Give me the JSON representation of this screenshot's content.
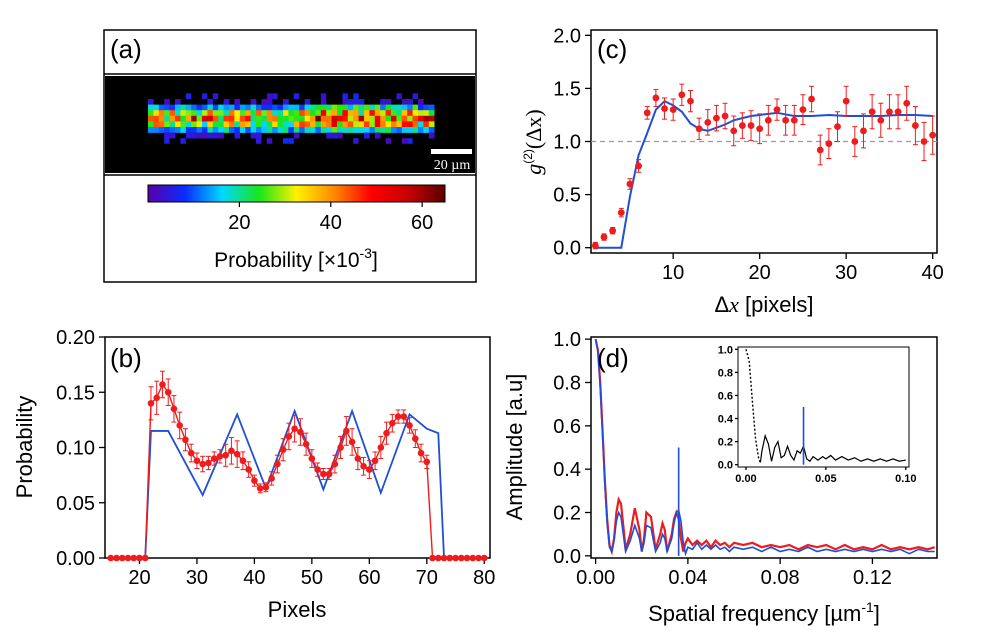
{
  "panels": {
    "a": {
      "label": "(a)",
      "scale_bar_label": "20 µm",
      "colorbar": {
        "ticks": [
          "20",
          "40",
          "60"
        ],
        "tick_values": [
          20,
          40,
          60
        ],
        "range": [
          0,
          65
        ],
        "label_main": "Probability [×10",
        "label_sup": "-3",
        "label_end": "]",
        "colormap": [
          "#5a00a8",
          "#0a2cff",
          "#00d8ff",
          "#19e61a",
          "#fff200",
          "#ff8a00",
          "#ff0000",
          "#c80000",
          "#5a0000"
        ]
      }
    },
    "b": {
      "label": "(b)",
      "xlabel": "Pixels",
      "ylabel": "Probability",
      "xticks": [
        "20",
        "30",
        "40",
        "50",
        "60",
        "70",
        "80"
      ],
      "yticks": [
        "0.00",
        "0.05",
        "0.10",
        "0.15",
        "0.20"
      ]
    },
    "c": {
      "label": "(c)",
      "ylabel_g": "g",
      "ylabel_sup": "(2)",
      "ylabel_rest": "(Δx)",
      "xlabel_delta": "Δ",
      "xlabel_var": "x",
      "xlabel_rest": " [pixels]",
      "xticks": [
        "10",
        "20",
        "30",
        "40"
      ],
      "yticks": [
        "0.0",
        "0.5",
        "1.0",
        "1.5",
        "2.0"
      ]
    },
    "d": {
      "label": "(d)",
      "ylabel": "Amplitude [a.u]",
      "xlabel_main": "Spatial frequency [µm",
      "xlabel_sup": "-1",
      "xlabel_end": "]",
      "xticks": [
        "0.00",
        "0.04",
        "0.08",
        "0.12"
      ],
      "yticks": [
        "0.0",
        "0.2",
        "0.4",
        "0.6",
        "0.8",
        "1.0"
      ],
      "inset": {
        "xticks": [
          "0.00",
          "0.05",
          "0.10"
        ],
        "yticks": [
          "0.0",
          "0.2",
          "0.4",
          "0.6",
          "0.8",
          "1.0"
        ]
      }
    }
  },
  "chart_data": [
    {
      "panel": "a",
      "type": "heatmap",
      "description_value_range": [
        0,
        65
      ],
      "rows": 7,
      "cols": 53,
      "colorbar_ticks": [
        20,
        40,
        60
      ]
    },
    {
      "panel": "b",
      "type": "line",
      "xlabel": "Pixels",
      "ylabel": "Probability",
      "xlim": [
        14,
        81
      ],
      "ylim": [
        0,
        0.2
      ],
      "colors": {
        "data": "#ee1c1c",
        "model": "#1f4fd6"
      },
      "series": [
        {
          "x": [
            15,
            16,
            17,
            18,
            19,
            20,
            21,
            22,
            23,
            24,
            25,
            26,
            27,
            28,
            29,
            30,
            31,
            32,
            33,
            34,
            35,
            36,
            37,
            38,
            39,
            40,
            41,
            42,
            43,
            44,
            45,
            46,
            47,
            48,
            49,
            50,
            51,
            52,
            53,
            54,
            55,
            56,
            57,
            58,
            59,
            60,
            61,
            62,
            63,
            64,
            65,
            66,
            67,
            68,
            69,
            70,
            71,
            72,
            73,
            74,
            75,
            76,
            77,
            78,
            79,
            80
          ],
          "y": [
            0,
            0,
            0,
            0,
            0,
            0,
            0,
            0.14,
            0.145,
            0.157,
            0.15,
            0.135,
            0.12,
            0.107,
            0.095,
            0.088,
            0.085,
            0.086,
            0.09,
            0.092,
            0.093,
            0.097,
            0.094,
            0.088,
            0.08,
            0.07,
            0.063,
            0.064,
            0.072,
            0.085,
            0.098,
            0.11,
            0.117,
            0.114,
            0.103,
            0.09,
            0.08,
            0.076,
            0.076,
            0.085,
            0.1,
            0.115,
            0.105,
            0.09,
            0.083,
            0.08,
            0.088,
            0.1,
            0.113,
            0.122,
            0.128,
            0.128,
            0.12,
            0.108,
            0.095,
            0.087,
            0,
            0,
            0,
            0,
            0,
            0,
            0,
            0,
            0,
            0
          ],
          "yerr": [
            0,
            0,
            0,
            0,
            0,
            0,
            0,
            0.015,
            0.015,
            0.012,
            0.012,
            0.012,
            0.012,
            0.01,
            0.008,
            0.007,
            0.007,
            0.006,
            0.006,
            0.006,
            0.01,
            0.012,
            0.012,
            0.008,
            0.007,
            0.005,
            0.004,
            0.004,
            0.006,
            0.008,
            0.01,
            0.012,
            0.012,
            0.012,
            0.01,
            0.008,
            0.006,
            0.005,
            0.005,
            0.008,
            0.01,
            0.013,
            0.012,
            0.01,
            0.008,
            0.008,
            0.008,
            0.01,
            0.01,
            0.008,
            0.006,
            0.006,
            0.007,
            0.008,
            0.008,
            0.006,
            0,
            0,
            0,
            0,
            0,
            0,
            0,
            0,
            0,
            0
          ]
        },
        {
          "x": [
            21,
            22,
            25,
            31,
            37,
            42,
            47,
            52,
            57,
            62,
            67,
            70,
            72,
            73
          ],
          "y": [
            0,
            0.115,
            0.115,
            0.057,
            0.13,
            0.063,
            0.133,
            0.062,
            0.133,
            0.059,
            0.13,
            0.117,
            0.113,
            0
          ]
        }
      ]
    },
    {
      "panel": "c",
      "type": "scatter",
      "xlim": [
        0.5,
        40.5
      ],
      "ylim": [
        -0.05,
        2.05
      ],
      "reference_line_y": 1.0,
      "colors": {
        "data": "#ee1c1c",
        "model": "#1f4fd6",
        "reference": "#9a9a9a"
      },
      "series": [
        {
          "x": [
            1,
            2,
            3,
            4,
            5,
            6,
            7,
            8,
            9,
            10,
            11,
            12,
            13,
            14,
            15,
            16,
            17,
            18,
            19,
            20,
            21,
            22,
            23,
            24,
            25,
            26,
            27,
            28,
            29,
            30,
            31,
            32,
            33,
            34,
            35,
            36,
            37,
            38,
            39,
            40
          ],
          "y": [
            0.02,
            0.1,
            0.16,
            0.33,
            0.6,
            0.77,
            1.27,
            1.41,
            1.31,
            1.3,
            1.44,
            1.38,
            1.12,
            1.18,
            1.22,
            1.24,
            1.1,
            1.15,
            1.15,
            1.12,
            1.2,
            1.3,
            1.2,
            1.2,
            1.3,
            1.4,
            0.92,
            0.98,
            1.14,
            1.38,
            1.0,
            1.1,
            1.28,
            1.2,
            1.28,
            1.28,
            1.36,
            1.15,
            1.0,
            1.06
          ],
          "yerr": [
            0.03,
            0.03,
            0.03,
            0.04,
            0.05,
            0.06,
            0.06,
            0.08,
            0.1,
            0.1,
            0.1,
            0.1,
            0.1,
            0.12,
            0.12,
            0.12,
            0.14,
            0.12,
            0.14,
            0.14,
            0.14,
            0.1,
            0.14,
            0.14,
            0.14,
            0.12,
            0.14,
            0.14,
            0.14,
            0.14,
            0.14,
            0.16,
            0.16,
            0.16,
            0.16,
            0.16,
            0.16,
            0.18,
            0.18,
            0.18
          ]
        },
        {
          "x": [
            1,
            2,
            3,
            4,
            5,
            6,
            7,
            8,
            9,
            10,
            11,
            12,
            13,
            14,
            15,
            16,
            17,
            18,
            19,
            20,
            22,
            24,
            26,
            28,
            30,
            32,
            34,
            36,
            38,
            40
          ],
          "y": [
            0,
            0,
            0,
            0,
            0.48,
            0.87,
            1.08,
            1.3,
            1.38,
            1.34,
            1.28,
            1.17,
            1.12,
            1.1,
            1.13,
            1.16,
            1.2,
            1.22,
            1.24,
            1.25,
            1.27,
            1.24,
            1.24,
            1.25,
            1.24,
            1.24,
            1.24,
            1.25,
            1.25,
            1.24
          ]
        }
      ]
    },
    {
      "panel": "d",
      "type": "line",
      "xlim": [
        -0.002,
        0.148
      ],
      "ylim": [
        -0.01,
        1.01
      ],
      "colors": {
        "red": "#ee1c1c",
        "blue": "#1f4fd6",
        "peak": "#1f4fd6"
      },
      "peak_line": {
        "x": 0.036,
        "y": 0.5
      },
      "series": [
        {
          "x": [
            0,
            0.001,
            0.002,
            0.003,
            0.004,
            0.005,
            0.006,
            0.007,
            0.008,
            0.009,
            0.01,
            0.011,
            0.012,
            0.013,
            0.015,
            0.017,
            0.019,
            0.02,
            0.021,
            0.022,
            0.024,
            0.026,
            0.028,
            0.029,
            0.03,
            0.031,
            0.033,
            0.034,
            0.035,
            0.036,
            0.037,
            0.038,
            0.039,
            0.04,
            0.042,
            0.044,
            0.046,
            0.048,
            0.05,
            0.052,
            0.054,
            0.056,
            0.058,
            0.06,
            0.064,
            0.068,
            0.072,
            0.076,
            0.08,
            0.084,
            0.088,
            0.092,
            0.096,
            0.1,
            0.104,
            0.108,
            0.112,
            0.116,
            0.12,
            0.124,
            0.128,
            0.132,
            0.136,
            0.14,
            0.144,
            0.147
          ],
          "y": [
            1.0,
            0.95,
            0.8,
            0.58,
            0.35,
            0.17,
            0.05,
            0.02,
            0.08,
            0.2,
            0.26,
            0.24,
            0.14,
            0.03,
            0.1,
            0.22,
            0.12,
            0.02,
            0.08,
            0.2,
            0.18,
            0.03,
            0.1,
            0.15,
            0.12,
            0.02,
            0.1,
            0.17,
            0.2,
            0.17,
            0.08,
            0.02,
            0.06,
            0.08,
            0.05,
            0.07,
            0.05,
            0.07,
            0.04,
            0.07,
            0.05,
            0.06,
            0.04,
            0.06,
            0.05,
            0.06,
            0.04,
            0.05,
            0.04,
            0.05,
            0.03,
            0.05,
            0.04,
            0.05,
            0.03,
            0.05,
            0.03,
            0.04,
            0.03,
            0.05,
            0.03,
            0.04,
            0.03,
            0.04,
            0.03,
            0.04
          ]
        },
        {
          "x": [
            0,
            0.001,
            0.002,
            0.003,
            0.004,
            0.005,
            0.006,
            0.007,
            0.008,
            0.009,
            0.01,
            0.011,
            0.012,
            0.013,
            0.015,
            0.017,
            0.019,
            0.02,
            0.021,
            0.022,
            0.024,
            0.026,
            0.028,
            0.029,
            0.03,
            0.031,
            0.033,
            0.034,
            0.035,
            0.036,
            0.037,
            0.038,
            0.039,
            0.04,
            0.042,
            0.044,
            0.046,
            0.048,
            0.05,
            0.052,
            0.054,
            0.056,
            0.058,
            0.06,
            0.064,
            0.068,
            0.072,
            0.076,
            0.08,
            0.084,
            0.088,
            0.092,
            0.096,
            0.1,
            0.104,
            0.108,
            0.112,
            0.116,
            0.12,
            0.124,
            0.128,
            0.132,
            0.136,
            0.14,
            0.144,
            0.147
          ],
          "y": [
            1.0,
            0.94,
            0.78,
            0.56,
            0.33,
            0.15,
            0.04,
            0.02,
            0.07,
            0.16,
            0.2,
            0.18,
            0.1,
            0.02,
            0.07,
            0.14,
            0.08,
            0.02,
            0.06,
            0.14,
            0.13,
            0.02,
            0.06,
            0.1,
            0.08,
            0.02,
            0.08,
            0.15,
            0.2,
            0.21,
            0.16,
            0.06,
            0.01,
            0.04,
            0.03,
            0.06,
            0.03,
            0.05,
            0.03,
            0.05,
            0.03,
            0.04,
            0.02,
            0.04,
            0.03,
            0.04,
            0.02,
            0.04,
            0.02,
            0.03,
            0.02,
            0.04,
            0.02,
            0.03,
            0.02,
            0.03,
            0.02,
            0.03,
            0.02,
            0.03,
            0.02,
            0.03,
            0.01,
            0.03,
            0.02,
            0.02
          ]
        }
      ],
      "inset": {
        "xlim": [
          -0.005,
          0.102
        ],
        "ylim": [
          -0.02,
          1.02
        ],
        "peak_line": {
          "x": 0.036,
          "y": 0.5
        },
        "series": [
          {
            "x": [
              0,
              0.002,
              0.004,
              0.006,
              0.008,
              0.009,
              0.01,
              0.012,
              0.014,
              0.016,
              0.018,
              0.02,
              0.022,
              0.024,
              0.026,
              0.028,
              0.03,
              0.032,
              0.034,
              0.036,
              0.038,
              0.04,
              0.042,
              0.045,
              0.048,
              0.05,
              0.053,
              0.056,
              0.06,
              0.064,
              0.068,
              0.072,
              0.076,
              0.08,
              0.084,
              0.088,
              0.092,
              0.096,
              0.1
            ],
            "y": [
              1.0,
              0.9,
              0.55,
              0.22,
              0.05,
              0.02,
              0.12,
              0.25,
              0.18,
              0.03,
              0.15,
              0.2,
              0.06,
              0.08,
              0.16,
              0.08,
              0.04,
              0.12,
              0.1,
              0.16,
              0.05,
              0.03,
              0.07,
              0.04,
              0.07,
              0.05,
              0.08,
              0.04,
              0.07,
              0.04,
              0.06,
              0.03,
              0.05,
              0.03,
              0.05,
              0.03,
              0.05,
              0.03,
              0.04
            ]
          }
        ]
      }
    }
  ]
}
